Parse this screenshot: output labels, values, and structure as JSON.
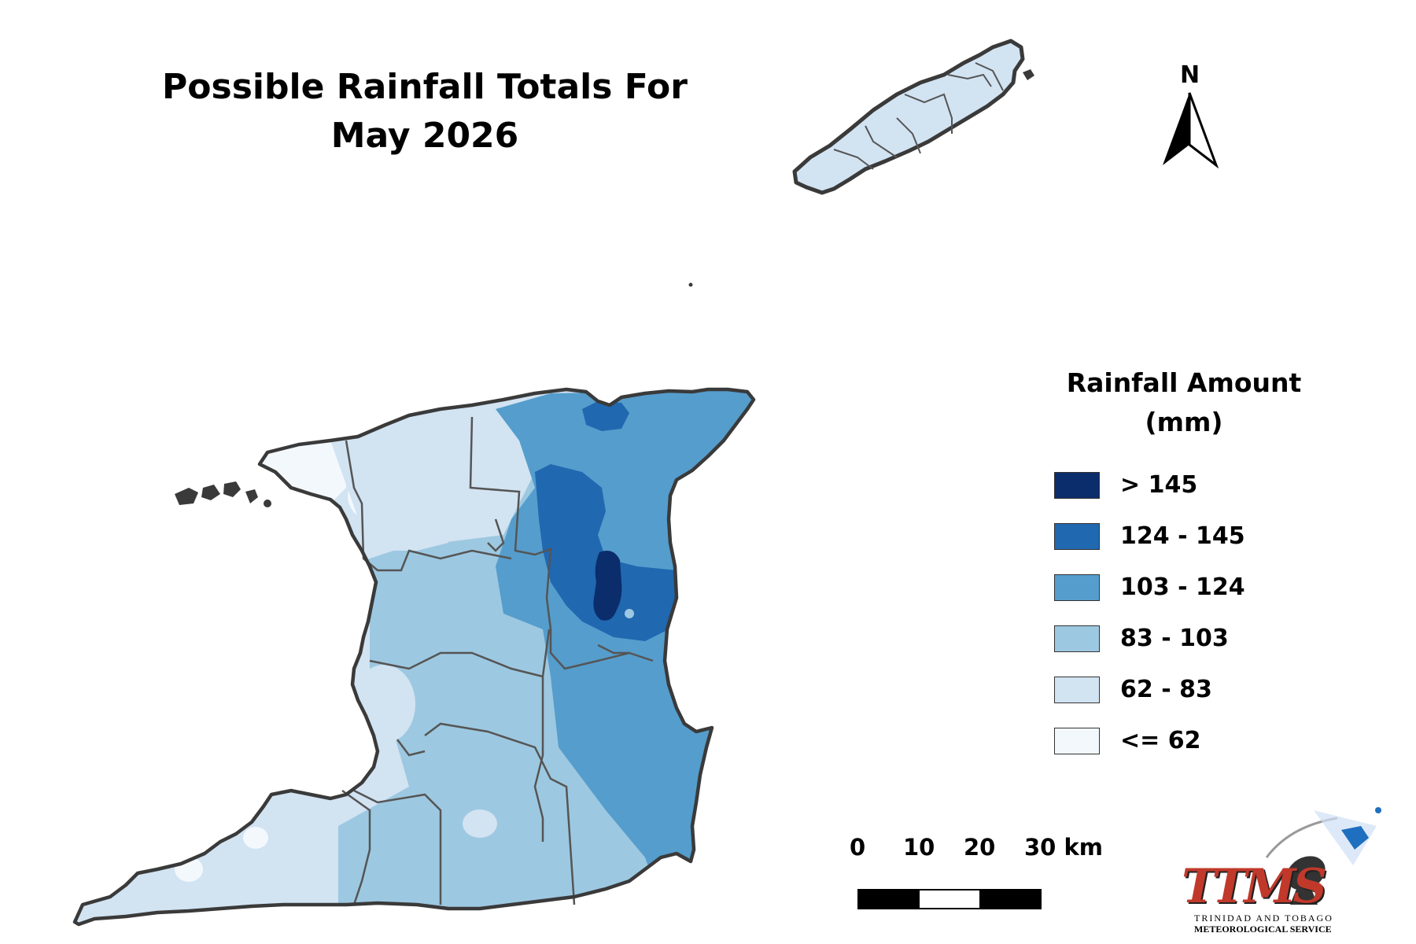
{
  "title": {
    "line1": "Possible Rainfall Totals For",
    "line2": "May 2026"
  },
  "legend": {
    "title_line1": "Rainfall Amount",
    "title_line2": "(mm)",
    "items": [
      {
        "label": "> 145",
        "color": "#0b2d6b"
      },
      {
        "label": "124 - 145",
        "color": "#2068b0"
      },
      {
        "label": "103 - 124",
        "color": "#559dcc"
      },
      {
        "label": "83 - 103",
        "color": "#9dc8e1"
      },
      {
        "label": "62 - 83",
        "color": "#d2e3f2"
      },
      {
        "label": "<= 62",
        "color": "#f3f8fd"
      }
    ]
  },
  "scale_bar": {
    "labels": [
      "0",
      "10",
      "20",
      "30 km"
    ]
  },
  "north_arrow": {
    "letter": "N",
    "icon": "north-arrow-icon"
  },
  "logo": {
    "text": "TTMS",
    "subtitle_line1": "TRINIDAD AND TOBAGO",
    "subtitle_line2": "METEOROLOGICAL SERVICE",
    "icon": "satellite-dish-icon",
    "colors": {
      "primary": "#c0392b",
      "accent": "#1f6fc0"
    }
  },
  "map_colors": {
    "outline": "#3a3a3a",
    "boundary": "#555555"
  }
}
